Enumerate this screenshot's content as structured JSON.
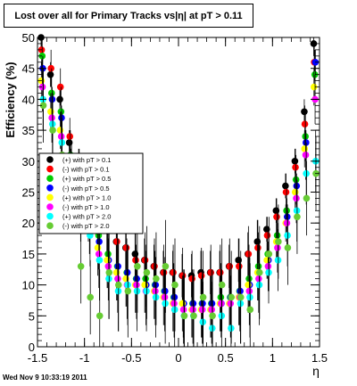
{
  "title": "Lost over all for Primary Tracks vs|η| at pT > 0.11",
  "timestamp": "Wed Nov  9 10:33:19 2011",
  "colors": {
    "black": "#000000",
    "red": "#ff0000",
    "green": "#00cc00",
    "blue": "#0000ff",
    "yellow": "#ffff00",
    "magenta": "#ff00ff",
    "cyan": "#00ffff",
    "lightgreen": "#66cc33"
  },
  "chart_data": {
    "type": "scatter",
    "xlabel": "η",
    "ylabel": "Efficiency (%)",
    "xlim": [
      -1.5,
      1.5
    ],
    "ylim": [
      0,
      50
    ],
    "xticks": [
      "-1.5",
      "-1",
      "-0.5",
      "0",
      "0.5",
      "1",
      "1.5"
    ],
    "yticks": [
      "0",
      "5",
      "10",
      "15",
      "20",
      "25",
      "30",
      "35",
      "40",
      "45",
      "50"
    ],
    "legend_position": "left-middle",
    "series": [
      {
        "name": "(+) with pT > 0.1",
        "color": "#000000",
        "x": [
          -1.45,
          -1.35,
          -1.25,
          -1.15,
          -1.05,
          -0.95,
          -0.85,
          -0.75,
          -0.65,
          -0.55,
          -0.45,
          -0.35,
          -0.25,
          -0.15,
          -0.05,
          0.05,
          0.15,
          0.25,
          0.35,
          0.45,
          0.55,
          0.65,
          0.75,
          0.85,
          0.95,
          1.05,
          1.15,
          1.25,
          1.35,
          1.45
        ],
        "y": [
          50,
          44,
          40,
          33,
          30,
          26,
          22,
          19,
          17,
          16,
          15,
          14,
          13,
          12,
          12,
          11.5,
          11.5,
          12,
          12,
          12,
          13,
          14,
          15,
          17,
          19,
          22,
          26,
          30,
          38,
          49
        ]
      },
      {
        "name": "(-) with pT > 0.1",
        "color": "#ff0000",
        "x": [
          -1.45,
          -1.35,
          -1.25,
          -1.15,
          -1.05,
          -0.95,
          -0.85,
          -0.75,
          -0.65,
          -0.55,
          -0.45,
          -0.35,
          -0.25,
          -0.15,
          -0.05,
          0.05,
          0.15,
          0.25,
          0.35,
          0.45,
          0.55,
          0.65,
          0.75,
          0.85,
          0.95,
          1.05,
          1.15,
          1.25,
          1.35,
          1.45
        ],
        "y": [
          48,
          45,
          42,
          34,
          29,
          25,
          22,
          19,
          17,
          16,
          14,
          14,
          13,
          12,
          12,
          11.5,
          11,
          11.5,
          12,
          12,
          13,
          13,
          15,
          16,
          18,
          21,
          25,
          29,
          36,
          46
        ]
      },
      {
        "name": "(+) with pT > 0.5",
        "color": "#00cc00",
        "x": [
          -1.45,
          -1.35,
          -1.25,
          -1.15,
          -1.05,
          -0.95,
          -0.85,
          -0.75,
          -0.65,
          -0.55,
          -0.45,
          -0.35,
          -0.25,
          -0.15,
          -0.05,
          0.05,
          0.15,
          0.25,
          0.35,
          0.45,
          0.55,
          0.65,
          0.75,
          0.85,
          0.95,
          1.05,
          1.15,
          1.25,
          1.35,
          1.45
        ],
        "y": [
          47,
          41,
          38,
          31,
          27,
          22,
          18,
          15,
          13,
          12,
          11,
          11,
          10,
          9,
          8,
          7,
          7,
          7,
          7,
          8,
          8,
          9,
          11,
          13,
          15,
          18,
          22,
          27,
          34,
          44
        ]
      },
      {
        "name": "(-) with pT > 0.5",
        "color": "#0000ff",
        "x": [
          -1.45,
          -1.35,
          -1.25,
          -1.15,
          -1.05,
          -0.95,
          -0.85,
          -0.75,
          -0.65,
          -0.55,
          -0.45,
          -0.35,
          -0.25,
          -0.15,
          -0.05,
          0.05,
          0.15,
          0.25,
          0.35,
          0.45,
          0.55,
          0.65,
          0.75,
          0.85,
          0.95,
          1.05,
          1.15,
          1.25,
          1.35,
          1.45
        ],
        "y": [
          45,
          40,
          37,
          30,
          26,
          21,
          17,
          14,
          13,
          12,
          11,
          10,
          10,
          9,
          8,
          7,
          7,
          7,
          7,
          7,
          8,
          9,
          10,
          12,
          14,
          17,
          21,
          26,
          33,
          46
        ]
      },
      {
        "name": "(+) with pT > 1.0",
        "color": "#ffff00",
        "x": [
          -1.45,
          -1.35,
          -1.25,
          -1.15,
          -1.05,
          -0.95,
          -0.85,
          -0.75,
          -0.65,
          -0.55,
          -0.45,
          -0.35,
          -0.25,
          -0.15,
          -0.05,
          0.05,
          0.15,
          0.25,
          0.35,
          0.45,
          0.55,
          0.65,
          0.75,
          0.85,
          0.95,
          1.05,
          1.15,
          1.25,
          1.35,
          1.45
        ],
        "y": [
          43,
          38,
          35,
          29,
          25,
          20,
          16,
          14,
          12,
          11,
          10,
          10,
          9,
          8,
          7,
          7,
          6,
          6,
          6,
          7,
          7,
          8,
          10,
          12,
          14,
          17,
          20,
          25,
          32,
          42
        ]
      },
      {
        "name": "(-) with pT > 1.0",
        "color": "#ff00ff",
        "x": [
          -1.45,
          -1.35,
          -1.25,
          -1.15,
          -1.05,
          -0.95,
          -0.85,
          -0.75,
          -0.65,
          -0.55,
          -0.45,
          -0.35,
          -0.25,
          -0.15,
          -0.05,
          0.05,
          0.15,
          0.25,
          0.35,
          0.45,
          0.55,
          0.65,
          0.75,
          0.85,
          0.95,
          1.05,
          1.15,
          1.25,
          1.35,
          1.45
        ],
        "y": [
          42,
          37,
          34,
          28,
          24,
          19,
          15,
          13,
          11,
          10,
          10,
          9,
          9,
          8,
          7,
          6,
          6,
          6,
          6,
          7,
          7,
          8,
          9,
          11,
          13,
          16,
          20,
          24,
          31,
          40
        ]
      },
      {
        "name": "(+) with pT > 2.0",
        "color": "#00ffff",
        "x": [
          -1.45,
          -1.35,
          -1.25,
          -1.15,
          -1.05,
          -0.95,
          -0.85,
          -0.75,
          -0.65,
          -0.55,
          -0.45,
          -0.35,
          -0.25,
          -0.15,
          -0.05,
          0.05,
          0.15,
          0.25,
          0.35,
          0.45,
          0.55,
          0.65,
          0.75,
          0.85,
          0.95,
          1.05,
          1.15,
          1.25,
          1.35,
          1.45
        ],
        "y": [
          40,
          36,
          33,
          26,
          22,
          18,
          14,
          11,
          9,
          10,
          9,
          9,
          8,
          7,
          6,
          5,
          5,
          4,
          3,
          5,
          3,
          7,
          8,
          10,
          12,
          14,
          18,
          22,
          28,
          30
        ]
      },
      {
        "name": "(-) with pT > 2.0",
        "color": "#66cc33",
        "x": [
          -1.45,
          -1.35,
          -1.25,
          -1.15,
          -1.05,
          -0.95,
          -0.85,
          -0.75,
          -0.65,
          -0.55,
          -0.45,
          -0.35,
          -0.25,
          -0.15,
          -0.05,
          0.05,
          0.15,
          0.25,
          0.35,
          0.45,
          0.55,
          0.65,
          0.75,
          0.85,
          0.95,
          1.05,
          1.15,
          1.25,
          1.35,
          1.45
        ],
        "y": [
          39,
          35,
          31,
          27,
          13,
          8,
          5,
          12,
          10,
          9,
          13,
          12,
          11,
          13,
          10,
          5,
          5,
          8,
          5,
          10,
          8,
          8,
          6,
          12,
          15,
          17,
          16,
          21,
          24,
          28
        ]
      }
    ]
  }
}
